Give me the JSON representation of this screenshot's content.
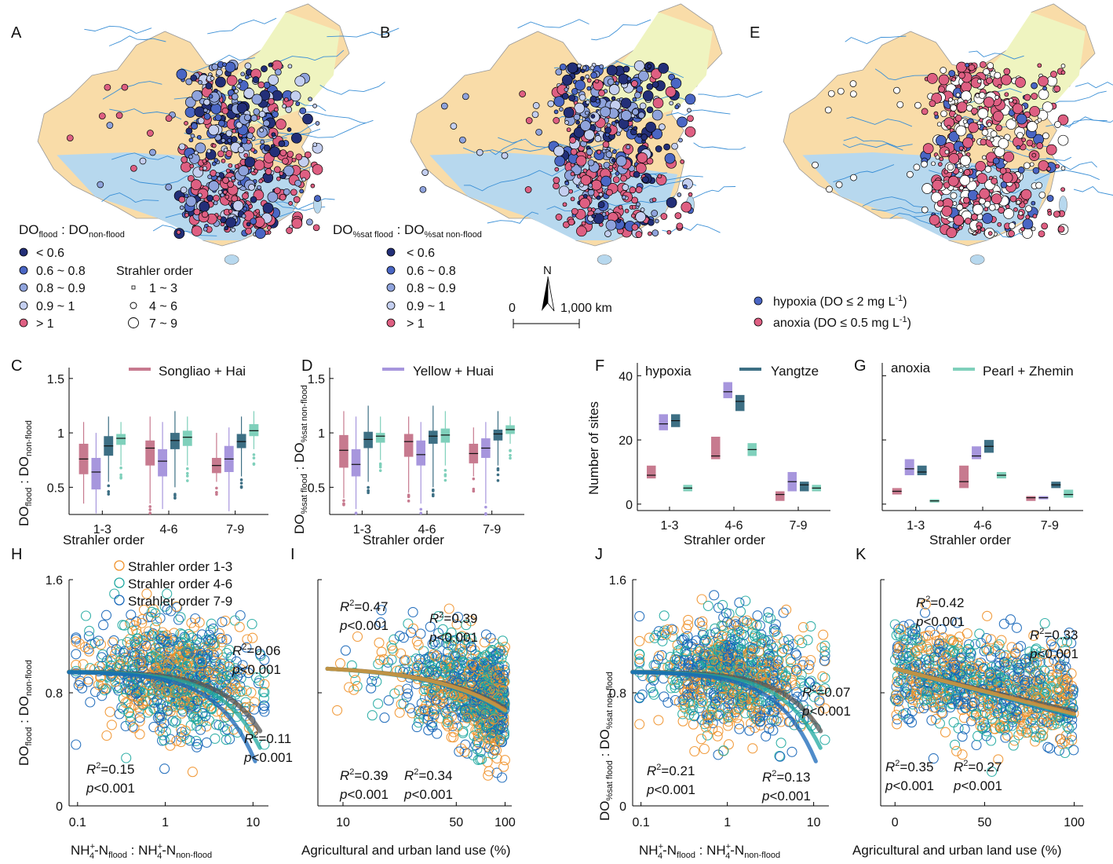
{
  "panels": {
    "A": "A",
    "B": "B",
    "C": "C",
    "D": "D",
    "E": "E",
    "F": "F",
    "G": "G",
    "H": "H",
    "I": "I",
    "J": "J",
    "K": "K"
  },
  "colors": {
    "songliao_hai": "#c77a8f",
    "yellow_huai": "#a796dd",
    "yangtze": "#3d6f84",
    "pearl_zhemin": "#7fd0bb",
    "order13": "#f0922b",
    "order46": "#1fa8a0",
    "order79": "#1565b8",
    "all": "#555555",
    "lt06": "#232f78",
    "c06_08": "#4a66c4",
    "c08_09": "#8fa3dc",
    "c09_1": "#c4cff0",
    "gt1": "#de5f82",
    "hypoxia": "#4a66c4",
    "anoxia": "#de5f82"
  },
  "mapA": {
    "ratio_label": "DO",
    "ratio_sub1": "flood",
    "ratio_mid": " : DO",
    "ratio_sub2": "non-flood",
    "legend": [
      "< 0.6",
      "0.6 ~ 0.8",
      "0.8 ~ 0.9",
      "0.9 ~ 1",
      "> 1"
    ],
    "strahler_title": "Strahler order",
    "strahler": [
      "1 ~ 3",
      "4 ~ 6",
      "7 ~ 9"
    ]
  },
  "mapB": {
    "ratio_label": "DO",
    "ratio_sub1": "%sat flood",
    "ratio_mid": " : DO",
    "ratio_sub2": "%sat non-flood",
    "legend": [
      "< 0.6",
      "0.6 ~ 0.8",
      "0.8 ~ 0.9",
      "0.9 ~ 1",
      "> 1"
    ],
    "north": "N",
    "scale_zero": "0",
    "scale_end": "1,000 km"
  },
  "mapE": {
    "legend": [
      "hypoxia (DO ≤ 2 mg L",
      "anoxia (DO ≤ 0.5 mg L"
    ],
    "unit_sup": "-1",
    "unit_close": ")"
  },
  "region_legend": {
    "songliao_hai": "Songliao + Hai",
    "yellow_huai": "Yellow + Huai",
    "yangtze": "Yangtze",
    "pearl_zhemin": "Pearl + Zhemin"
  },
  "hypoxia_label": "hypoxia",
  "anoxia_label": "anoxia",
  "axes": {
    "strahler_order": "Strahler order",
    "number_of_sites": "Number of sites",
    "land_use": "Agricultural and urban land use (%)",
    "order_ticks": [
      "1-3",
      "4-6",
      "7-9"
    ],
    "ratio_ticks_box": [
      "0.5",
      "1",
      "1.5"
    ],
    "sites_ticks": [
      "0",
      "20",
      "40"
    ],
    "ratio_ticks_scatter": [
      "0",
      "0.8",
      "1.6"
    ],
    "log_ticks": [
      "0.1",
      "1",
      "10"
    ],
    "land_ticks_log": [
      "10",
      "50",
      "100"
    ],
    "land_ticks_lin": [
      "0",
      "50",
      "100"
    ]
  },
  "scatter_legend": [
    "Strahler order 1-3",
    "Strahler order 4-6",
    "Strahler order 7-9"
  ],
  "chart_data": [
    {
      "panel": "C",
      "type": "box",
      "ylabel": "DO_flood : DO_non-flood",
      "xlabel": "Strahler order",
      "categories": [
        "1-3",
        "4-6",
        "7-9"
      ],
      "ylim": [
        0.25,
        1.6
      ],
      "series": [
        {
          "name": "Songliao + Hai",
          "medians": [
            0.76,
            0.86,
            0.7
          ],
          "q1": [
            0.62,
            0.7,
            0.63
          ],
          "q3": [
            0.9,
            0.93,
            0.77
          ],
          "whisk": [
            [
              0.35,
              1.1
            ],
            [
              0.35,
              1.15
            ],
            [
              0.55,
              1.0
            ]
          ]
        },
        {
          "name": "Yellow + Huai",
          "medians": [
            0.64,
            0.74,
            0.76
          ],
          "q1": [
            0.48,
            0.6,
            0.64
          ],
          "q3": [
            0.77,
            0.85,
            0.88
          ],
          "whisk": [
            [
              0.26,
              1.0
            ],
            [
              0.3,
              1.1
            ],
            [
              0.28,
              1.05
            ]
          ]
        },
        {
          "name": "Yangtze",
          "medians": [
            0.88,
            0.93,
            0.92
          ],
          "q1": [
            0.79,
            0.85,
            0.86
          ],
          "q3": [
            0.97,
            1.0,
            0.99
          ],
          "whisk": [
            [
              0.55,
              1.15
            ],
            [
              0.5,
              1.2
            ],
            [
              0.6,
              1.15
            ]
          ]
        },
        {
          "name": "Pearl + Zhemin",
          "medians": [
            0.95,
            0.96,
            1.02
          ],
          "q1": [
            0.89,
            0.88,
            0.97
          ],
          "q3": [
            0.99,
            1.02,
            1.08
          ],
          "whisk": [
            [
              0.7,
              1.1
            ],
            [
              0.7,
              1.15
            ],
            [
              0.85,
              1.2
            ]
          ]
        }
      ]
    },
    {
      "panel": "D",
      "type": "box",
      "ylabel": "DO_%sat flood : DO_%sat non-flood",
      "xlabel": "Strahler order",
      "categories": [
        "1-3",
        "4-6",
        "7-9"
      ],
      "ylim": [
        0.25,
        1.6
      ],
      "series": [
        {
          "name": "Songliao + Hai",
          "medians": [
            0.84,
            0.92,
            0.81
          ],
          "q1": [
            0.68,
            0.78,
            0.72
          ],
          "q3": [
            0.98,
            0.99,
            0.9
          ],
          "whisk": [
            [
              0.4,
              1.2
            ],
            [
              0.45,
              1.15
            ],
            [
              0.6,
              1.05
            ]
          ]
        },
        {
          "name": "Yellow + Huai",
          "medians": [
            0.71,
            0.8,
            0.86
          ],
          "q1": [
            0.6,
            0.7,
            0.77
          ],
          "q3": [
            0.85,
            0.93,
            0.95
          ],
          "whisk": [
            [
              0.3,
              1.15
            ],
            [
              0.35,
              1.1
            ],
            [
              0.35,
              1.1
            ]
          ]
        },
        {
          "name": "Yangtze",
          "medians": [
            0.94,
            0.97,
            0.99
          ],
          "q1": [
            0.86,
            0.9,
            0.93
          ],
          "q3": [
            1.01,
            1.02,
            1.03
          ],
          "whisk": [
            [
              0.55,
              1.25
            ],
            [
              0.5,
              1.25
            ],
            [
              0.7,
              1.2
            ]
          ]
        },
        {
          "name": "Pearl + Zhemin",
          "medians": [
            0.97,
            0.98,
            1.03
          ],
          "q1": [
            0.91,
            0.91,
            0.99
          ],
          "q3": [
            1.0,
            1.04,
            1.07
          ],
          "whisk": [
            [
              0.75,
              1.15
            ],
            [
              0.7,
              1.2
            ],
            [
              0.9,
              1.15
            ]
          ]
        }
      ]
    },
    {
      "panel": "F",
      "type": "box",
      "title": "hypoxia",
      "ylabel": "Number of sites",
      "xlabel": "Strahler order",
      "categories": [
        "1-3",
        "4-6",
        "7-9"
      ],
      "ylim": [
        -2,
        44
      ],
      "series": [
        {
          "name": "Songliao + Hai",
          "medians": [
            9,
            15,
            3
          ],
          "q1": [
            8,
            14,
            1
          ],
          "q3": [
            12,
            21,
            4
          ]
        },
        {
          "name": "Yellow + Huai",
          "medians": [
            25,
            35,
            7
          ],
          "q1": [
            23,
            33,
            4
          ],
          "q3": [
            28,
            38,
            10
          ]
        },
        {
          "name": "Yangtze",
          "medians": [
            26,
            32,
            6
          ],
          "q1": [
            24,
            29,
            4
          ],
          "q3": [
            28,
            34,
            7
          ]
        },
        {
          "name": "Pearl + Zhemin",
          "medians": [
            5,
            17,
            5
          ],
          "q1": [
            4,
            15,
            4
          ],
          "q3": [
            6,
            19,
            6
          ]
        }
      ]
    },
    {
      "panel": "G",
      "type": "box",
      "title": "anoxia",
      "xlabel": "Strahler order",
      "categories": [
        "1-3",
        "4-6",
        "7-9"
      ],
      "ylim": [
        -2,
        44
      ],
      "series": [
        {
          "name": "Songliao + Hai",
          "medians": [
            4,
            7,
            2
          ],
          "q1": [
            3,
            5,
            1
          ],
          "q3": [
            5,
            12,
            2.5
          ]
        },
        {
          "name": "Yellow + Huai",
          "medians": [
            11,
            15,
            2
          ],
          "q1": [
            9,
            14,
            1.5
          ],
          "q3": [
            14,
            18,
            2.5
          ]
        },
        {
          "name": "Yangtze",
          "medians": [
            10,
            18,
            6
          ],
          "q1": [
            9,
            16,
            5
          ],
          "q3": [
            12,
            20,
            7
          ]
        },
        {
          "name": "Pearl + Zhemin",
          "medians": [
            1,
            9,
            3
          ],
          "q1": [
            0.5,
            8,
            2
          ],
          "q3": [
            1.5,
            10,
            4.5
          ]
        }
      ]
    },
    {
      "panel": "H",
      "type": "scatter",
      "xlabel": "NH4+-N_flood : NH4+-N_non-flood",
      "ylabel": "DO_flood : DO_non-flood",
      "xscale": "log",
      "xlim": [
        0.08,
        15
      ],
      "ylim": [
        0,
        1.6
      ],
      "fits": [
        {
          "group": "all",
          "r2": "0.06",
          "p": "p<0.001"
        },
        {
          "group": "Strahler order 4-6",
          "r2": "0.11",
          "p": "p<0.001"
        },
        {
          "group": "Strahler order 7-9",
          "r2": "0.15",
          "p": "p<0.001"
        }
      ]
    },
    {
      "panel": "I",
      "type": "scatter",
      "xlabel": "Agricultural and urban land use (%)",
      "xscale": "log",
      "xlim": [
        7,
        110
      ],
      "ylim": [
        0,
        1.6
      ],
      "fits": [
        {
          "group": "Strahler order 7-9",
          "r2": "0.47",
          "p": "p<0.001"
        },
        {
          "group": "all",
          "r2": "0.39",
          "p": "p<0.001"
        },
        {
          "group": "Strahler order 4-6",
          "r2": "0.39",
          "p": "p<0.001"
        },
        {
          "group": "Strahler order 1-3",
          "r2": "0.34",
          "p": "p<0.001"
        }
      ]
    },
    {
      "panel": "J",
      "type": "scatter",
      "xlabel": "NH4+-N_flood : NH4+-N_non-flood",
      "ylabel": "DO_%sat flood : DO_%sat non-flood",
      "xscale": "log",
      "xlim": [
        0.08,
        15
      ],
      "ylim": [
        0,
        1.6
      ],
      "fits": [
        {
          "group": "all",
          "r2": "0.07",
          "p": "p<0.001"
        },
        {
          "group": "Strahler order 7-9",
          "r2": "0.21",
          "p": "p<0.001"
        },
        {
          "group": "Strahler order 4-6",
          "r2": "0.13",
          "p": "p<0.001"
        }
      ]
    },
    {
      "panel": "K",
      "type": "scatter",
      "xlabel": "Agricultural and urban land use (%)",
      "xscale": "linear",
      "xlim": [
        -8,
        105
      ],
      "ylim": [
        0,
        1.6
      ],
      "fits": [
        {
          "group": "Strahler order 7-9",
          "r2": "0.42",
          "p": "p<0.001"
        },
        {
          "group": "all",
          "r2": "0.33",
          "p": "p<0.001"
        },
        {
          "group": "Strahler order 4-6",
          "r2": "0.35",
          "p": "p<0.001"
        },
        {
          "group": "Strahler order 1-3",
          "r2": "0.27",
          "p": "p<0.001"
        }
      ]
    }
  ]
}
